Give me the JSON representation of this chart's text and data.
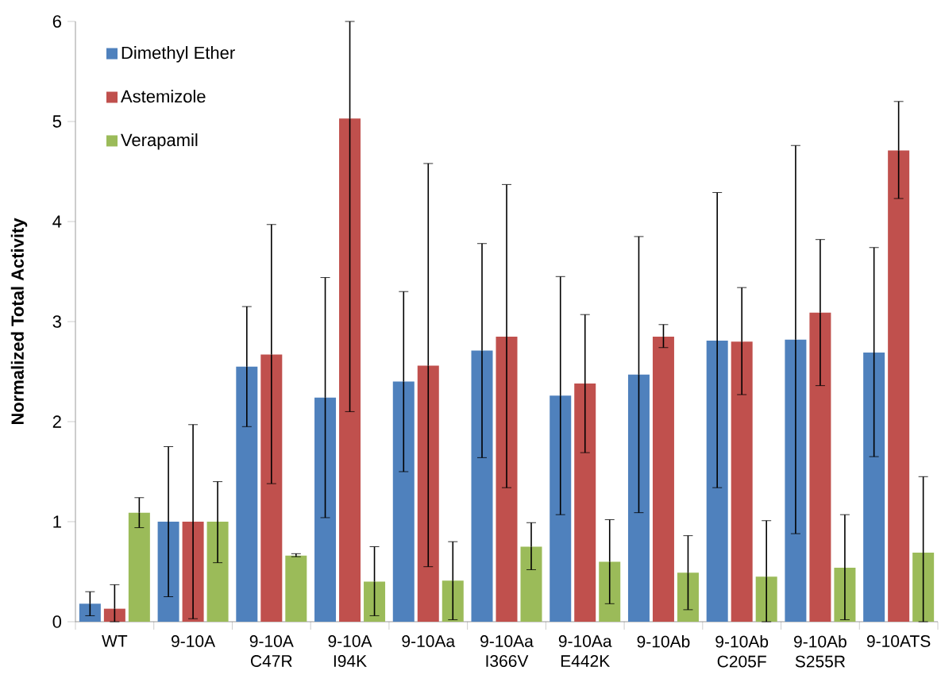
{
  "chart_data": {
    "type": "bar",
    "ylabel": "Normalized Total Activity",
    "categories": [
      "WT",
      "9-10A",
      "9-10A C47R",
      "9-10A I94K",
      "9-10Aa",
      "9-10Aa I366V",
      "9-10Aa E442K",
      "9-10Ab",
      "9-10Ab C205F",
      "9-10Ab S255R",
      "9-10ATS"
    ],
    "series": [
      {
        "name": "Dimethyl Ether",
        "color": "#4f81bd",
        "values": [
          0.18,
          1.0,
          2.55,
          2.24,
          2.4,
          2.71,
          2.26,
          2.47,
          2.81,
          2.82,
          2.69
        ],
        "errors": [
          [
            0.06,
            0.3
          ],
          [
            0.25,
            1.75
          ],
          [
            1.95,
            3.15
          ],
          [
            1.04,
            3.44
          ],
          [
            1.5,
            3.3
          ],
          [
            1.64,
            3.78
          ],
          [
            1.07,
            3.45
          ],
          [
            1.09,
            3.85
          ],
          [
            1.34,
            4.29
          ],
          [
            0.88,
            4.76
          ],
          [
            1.65,
            3.74
          ]
        ]
      },
      {
        "name": "Astemizole",
        "color": "#c0504d",
        "values": [
          0.13,
          1.0,
          2.67,
          5.03,
          2.56,
          2.85,
          2.38,
          2.85,
          2.8,
          3.09,
          4.71
        ],
        "errors": [
          [
            0.0,
            0.37
          ],
          [
            0.03,
            1.97
          ],
          [
            1.38,
            3.97
          ],
          [
            2.1,
            6.0
          ],
          [
            0.55,
            4.58
          ],
          [
            1.34,
            4.37
          ],
          [
            1.69,
            3.07
          ],
          [
            2.74,
            2.97
          ],
          [
            2.27,
            3.34
          ],
          [
            2.36,
            3.82
          ],
          [
            4.23,
            5.2
          ]
        ]
      },
      {
        "name": "Verapamil",
        "color": "#9bbb59",
        "values": [
          1.09,
          1.0,
          0.66,
          0.4,
          0.41,
          0.75,
          0.6,
          0.49,
          0.45,
          0.54,
          0.69
        ],
        "errors": [
          [
            0.94,
            1.24
          ],
          [
            0.59,
            1.4
          ],
          [
            0.65,
            0.68
          ],
          [
            0.06,
            0.75
          ],
          [
            0.02,
            0.8
          ],
          [
            0.52,
            0.99
          ],
          [
            0.18,
            1.02
          ],
          [
            0.12,
            0.86
          ],
          [
            0.0,
            1.01
          ],
          [
            0.02,
            1.07
          ],
          [
            0.0,
            1.45
          ]
        ]
      }
    ],
    "ylim": [
      0,
      6
    ],
    "yticks": [
      0,
      1,
      2,
      3,
      4,
      5,
      6
    ],
    "grid": false,
    "legend": "top left"
  }
}
